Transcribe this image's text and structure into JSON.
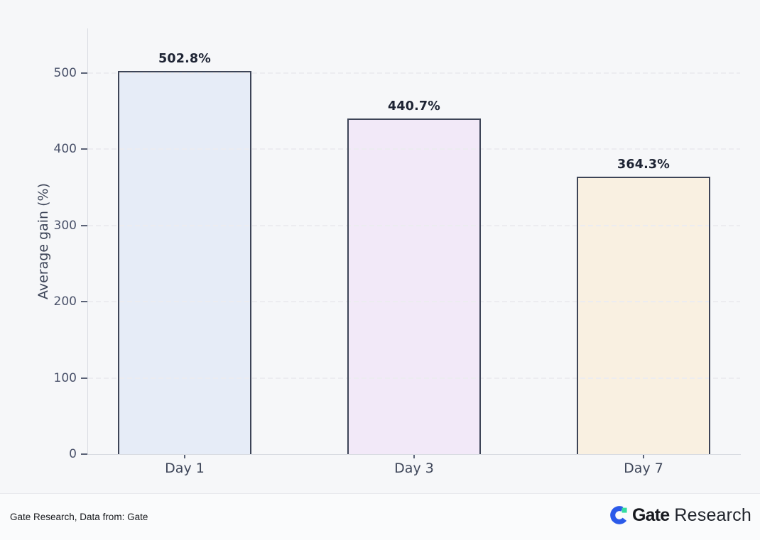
{
  "chart_data": {
    "type": "bar",
    "title": "",
    "xlabel": "",
    "ylabel": "Average gain (%)",
    "categories": [
      "Day 1",
      "Day 3",
      "Day 7"
    ],
    "values": [
      502.8,
      440.7,
      364.3
    ],
    "value_labels": [
      "502.8%",
      "440.7%",
      "364.3%"
    ],
    "ylim": [
      0,
      540
    ],
    "yticks": [
      0,
      100,
      200,
      300,
      400,
      500
    ],
    "ytick_labels": [
      "0",
      "100",
      "200",
      "300",
      "400",
      "500"
    ],
    "grid": "horizontal dashed",
    "legend": "none",
    "bar_colors": [
      "#e6ecf7",
      "#f2e9f8",
      "#f9f0e1"
    ],
    "bar_edge_color": "#3d4457"
  },
  "footer": {
    "attribution": "Gate Research, Data from: Gate",
    "logo": {
      "icon": "gate-logo-icon",
      "brand": "Gate",
      "suffix": "Research",
      "icon_blue": "#2b5ae9",
      "icon_green": "#35dca0"
    }
  }
}
